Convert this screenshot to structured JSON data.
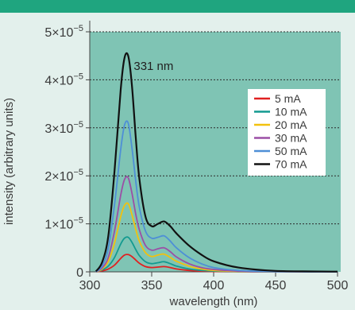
{
  "chart_data": {
    "type": "line",
    "title": "",
    "xlabel": "wavelength (nm)",
    "ylabel": "intensity (arbitrary units)",
    "xlim": [
      300,
      500
    ],
    "ylim": [
      0,
      5e-05
    ],
    "x_ticks": [
      {
        "value": 300,
        "label": "300"
      },
      {
        "value": 350,
        "label": "350"
      },
      {
        "value": 400,
        "label": "400"
      },
      {
        "value": 450,
        "label": "450"
      },
      {
        "value": 500,
        "label": "500"
      }
    ],
    "y_ticks": [
      {
        "value": 0,
        "mantissa": "0",
        "exponent": ""
      },
      {
        "value": 1e-05,
        "mantissa": "1×10",
        "exponent": "−5"
      },
      {
        "value": 2e-05,
        "mantissa": "2×10",
        "exponent": "−5"
      },
      {
        "value": 3e-05,
        "mantissa": "3×10",
        "exponent": "−5"
      },
      {
        "value": 4e-05,
        "mantissa": "4×10",
        "exponent": "−5"
      },
      {
        "value": 5e-05,
        "mantissa": "5×10",
        "exponent": "−5"
      }
    ],
    "grid": "horizontal dashed",
    "legend_position": "right",
    "annotation": {
      "text": "331 nm",
      "x": 331,
      "y": 4.5e-05
    },
    "series": [
      {
        "name": "5 mA",
        "color": "#e02020",
        "x": [
          305,
          310,
          315,
          320,
          325,
          328,
          331,
          334,
          337,
          340,
          345,
          350,
          355,
          360,
          365,
          370,
          380,
          390,
          400,
          420,
          450,
          500
        ],
        "y": [
          0,
          2e-07,
          6e-07,
          1.4e-06,
          2.8e-06,
          3.5e-06,
          3.6e-06,
          3.2e-06,
          2.5e-06,
          1.8e-06,
          1.1e-06,
          9e-07,
          1e-06,
          1.1e-06,
          9e-07,
          6e-07,
          3e-07,
          1.5e-07,
          7e-08,
          2e-08,
          0,
          0
        ]
      },
      {
        "name": "10 mA",
        "color": "#139a90",
        "x": [
          305,
          310,
          315,
          320,
          325,
          328,
          331,
          334,
          337,
          340,
          345,
          350,
          355,
          360,
          365,
          370,
          380,
          390,
          400,
          420,
          450,
          500
        ],
        "y": [
          0,
          4e-07,
          1.2e-06,
          3e-06,
          5.8e-06,
          7e-06,
          7.2e-06,
          6.2e-06,
          4.7e-06,
          3.4e-06,
          2.1e-06,
          1.7e-06,
          1.9e-06,
          2.1e-06,
          1.7e-06,
          1.2e-06,
          6e-07,
          3e-07,
          1.5e-07,
          5e-08,
          0,
          0
        ]
      },
      {
        "name": "20 mA",
        "color": "#f2c10e",
        "x": [
          305,
          310,
          315,
          320,
          325,
          328,
          331,
          334,
          337,
          340,
          345,
          350,
          355,
          360,
          365,
          370,
          380,
          390,
          400,
          420,
          450,
          500
        ],
        "y": [
          0,
          6e-07,
          2.2e-06,
          6e-06,
          1.15e-05,
          1.38e-05,
          1.42e-05,
          1.2e-05,
          9e-06,
          6.4e-06,
          4e-06,
          3.2e-06,
          3.5e-06,
          3.7e-06,
          3e-06,
          2.2e-06,
          1.2e-06,
          6e-07,
          3e-07,
          1e-07,
          2e-08,
          0
        ]
      },
      {
        "name": "30 mA",
        "color": "#9b4fa6",
        "x": [
          305,
          310,
          315,
          320,
          325,
          328,
          331,
          334,
          337,
          340,
          345,
          350,
          355,
          360,
          365,
          370,
          380,
          390,
          400,
          420,
          450,
          500
        ],
        "y": [
          0,
          8e-07,
          3e-06,
          8.5e-06,
          1.6e-05,
          1.92e-05,
          1.96e-05,
          1.65e-05,
          1.22e-05,
          8.8e-06,
          5.5e-06,
          4.5e-06,
          4.8e-06,
          5e-06,
          4.2e-06,
          3.1e-06,
          1.7e-06,
          9e-07,
          5e-07,
          1.5e-07,
          3e-08,
          0
        ]
      },
      {
        "name": "50 mA",
        "color": "#4e8fd6",
        "x": [
          305,
          310,
          315,
          320,
          325,
          328,
          331,
          334,
          337,
          340,
          345,
          350,
          355,
          360,
          365,
          370,
          380,
          390,
          400,
          420,
          450,
          500
        ],
        "y": [
          0,
          1.2e-06,
          5e-06,
          1.4e-05,
          2.55e-05,
          3.05e-05,
          3.1e-05,
          2.6e-05,
          1.92e-05,
          1.35e-05,
          8.5e-06,
          7e-06,
          7.2e-06,
          7.5e-06,
          6.4e-06,
          5e-06,
          3e-06,
          1.7e-06,
          9e-07,
          3e-07,
          5e-08,
          0
        ]
      },
      {
        "name": "70 mA",
        "color": "#111111",
        "x": [
          305,
          310,
          315,
          320,
          325,
          328,
          331,
          334,
          337,
          340,
          345,
          350,
          355,
          360,
          365,
          370,
          380,
          390,
          400,
          420,
          450,
          500
        ],
        "y": [
          1e-07,
          2e-06,
          7.5e-06,
          2.1e-05,
          3.8e-05,
          4.45e-05,
          4.5e-05,
          3.9e-05,
          2.85e-05,
          1.95e-05,
          1.15e-05,
          9.5e-06,
          1e-05,
          1.05e-05,
          9.5e-06,
          8e-06,
          5.5e-06,
          3.6e-06,
          2.2e-06,
          9e-07,
          2e-07,
          5e-08
        ]
      }
    ]
  }
}
